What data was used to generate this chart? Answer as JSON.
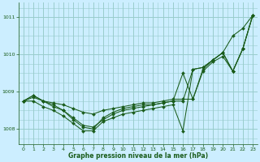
{
  "background_color": "#cceeff",
  "grid_color": "#99cccc",
  "line_color": "#1a5c1a",
  "xlabel": "Graphe pression niveau de la mer (hPa)",
  "ylim": [
    1007.6,
    1011.4
  ],
  "xlim": [
    -0.5,
    23.5
  ],
  "yticks": [
    1008,
    1009,
    1010,
    1011
  ],
  "xtick_labels": [
    "0",
    "1",
    "2",
    "3",
    "4",
    "5",
    "6",
    "7",
    "8",
    "9",
    "10",
    "11",
    "12",
    "13",
    "14",
    "15",
    "16",
    "17",
    "18",
    "19",
    "20",
    "21",
    "22",
    "23"
  ],
  "xticks": [
    0,
    1,
    2,
    3,
    4,
    5,
    6,
    7,
    8,
    9,
    10,
    11,
    12,
    13,
    14,
    15,
    16,
    17,
    18,
    19,
    20,
    21,
    22,
    23
  ],
  "series": [
    [
      1008.75,
      1008.85,
      1008.75,
      1008.7,
      1008.65,
      1008.55,
      1008.45,
      1008.4,
      1008.5,
      1008.55,
      1008.6,
      1008.65,
      1008.7,
      1008.7,
      1008.75,
      1008.8,
      1008.8,
      1008.8,
      1009.6,
      1009.85,
      1010.05,
      1010.5,
      1010.7,
      1011.05
    ],
    [
      1008.75,
      1008.9,
      1008.75,
      1008.65,
      1008.5,
      1008.3,
      1008.1,
      1008.05,
      1008.25,
      1008.4,
      1008.5,
      1008.55,
      1008.6,
      1008.65,
      1008.7,
      1008.75,
      1009.5,
      1008.8,
      1009.55,
      1009.8,
      1009.95,
      1009.55,
      1010.15,
      1011.05
    ],
    [
      1008.75,
      1008.9,
      1008.75,
      1008.6,
      1008.5,
      1008.25,
      1008.05,
      1008.0,
      1008.3,
      1008.45,
      1008.55,
      1008.6,
      1008.65,
      1008.65,
      1008.7,
      1008.75,
      1008.75,
      1009.6,
      1009.65,
      1009.85,
      1010.05,
      1009.55,
      1010.15,
      1011.05
    ],
    [
      1008.75,
      1008.75,
      1008.6,
      1008.5,
      1008.35,
      1008.15,
      1007.95,
      1007.95,
      1008.2,
      1008.3,
      1008.4,
      1008.45,
      1008.5,
      1008.55,
      1008.6,
      1008.65,
      1007.95,
      1009.6,
      1009.65,
      1009.85,
      1010.05,
      1009.55,
      1010.15,
      1011.05
    ]
  ]
}
